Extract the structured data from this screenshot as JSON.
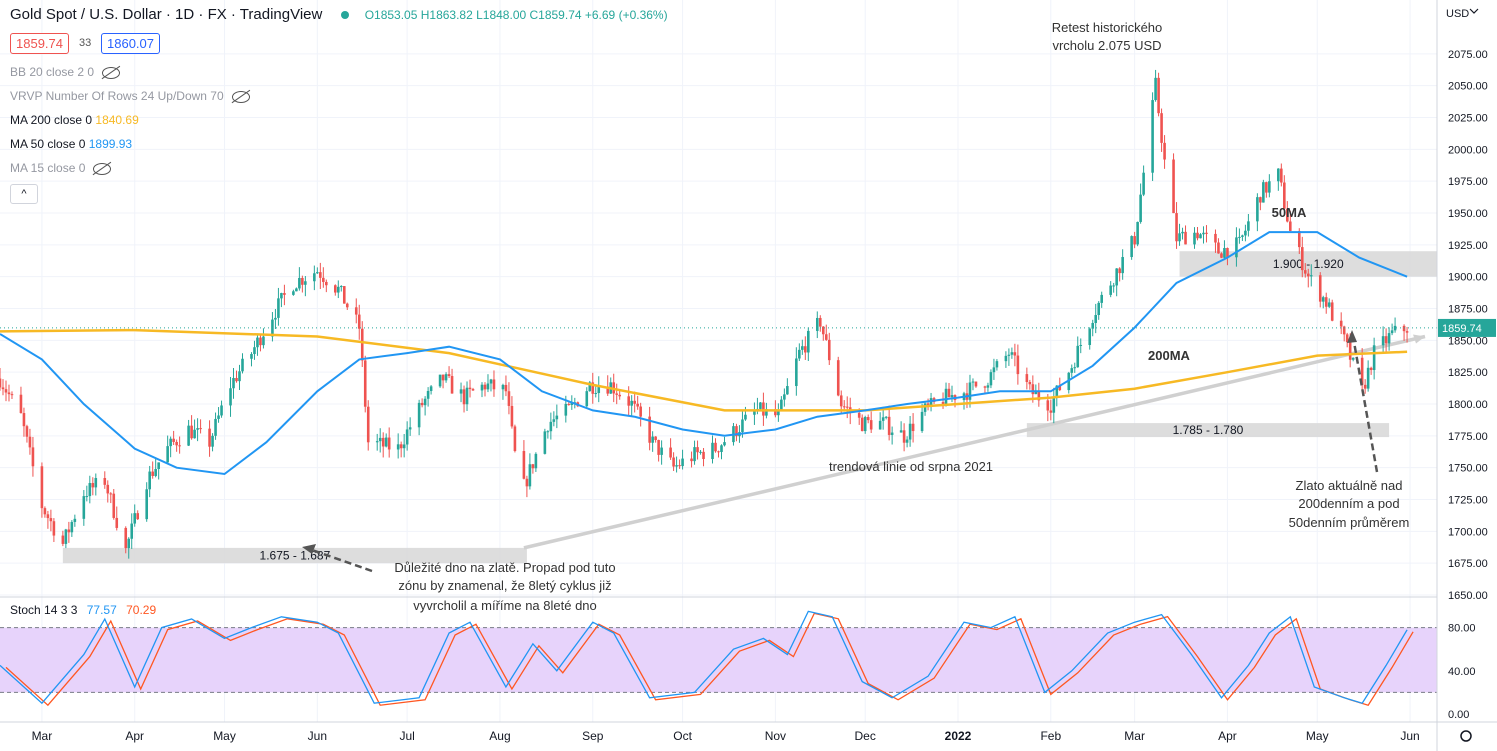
{
  "header": {
    "symbol": "Gold Spot / U.S. Dollar · 1D · FX · TradingView",
    "ohlc": "O1853.05  H1863.82  L1848.00  C1859.74  +6.69 (+0.36%)",
    "bid": "1859.74",
    "spread": "33",
    "ask": "1860.07"
  },
  "indicators": {
    "bb": "BB 20 close 2 0",
    "vrvp": "VRVP Number Of Rows 24 Up/Down 70",
    "ma200_label": "MA 200 close 0",
    "ma200_value": "1840.69",
    "ma50_label": "MA 50 close 0",
    "ma50_value": "1899.93",
    "ma15": "MA 15 close 0",
    "collapse": "^"
  },
  "stoch": {
    "label": "Stoch 14 3 3",
    "k": "77.57",
    "d": "70.29"
  },
  "colors": {
    "up": "#26a69a",
    "down": "#ef5350",
    "ma50": "#2196f3",
    "ma200": "#f7b924",
    "stoch_k": "#2196f3",
    "stoch_d": "#ff5722",
    "stoch_band": "#e7d3fb",
    "zone": "#d9d9d9",
    "trend": "#d0d0d0"
  },
  "chart_data": {
    "type": "candlestick",
    "currency": "USD",
    "ylim": [
      1650,
      2100
    ],
    "y_ticks": [
      1650,
      1675,
      1700,
      1725,
      1750,
      1775,
      1800,
      1825,
      1850,
      1875,
      1900,
      1925,
      1950,
      1975,
      2000,
      2025,
      2050,
      2075
    ],
    "y_tick_labels": [
      "1650.00",
      "1675.00",
      "1700.00",
      "1725.00",
      "1750.00",
      "1775.00",
      "1800.00",
      "1825.00",
      "1850.00",
      "1875.00",
      "1900.00",
      "1925.00",
      "1950.00",
      "1975.00",
      "2000.00",
      "2025.00",
      "2050.00",
      "2075.00"
    ],
    "x_range": [
      "2021-02-15",
      "2022-06-10"
    ],
    "x_labels": [
      {
        "date": "2021-03-01",
        "label": "Mar",
        "bold": false
      },
      {
        "date": "2021-04-01",
        "label": "Apr",
        "bold": false
      },
      {
        "date": "2021-05-01",
        "label": "May",
        "bold": false
      },
      {
        "date": "2021-06-01",
        "label": "Jun",
        "bold": false
      },
      {
        "date": "2021-07-01",
        "label": "Jul",
        "bold": false
      },
      {
        "date": "2021-08-01",
        "label": "Aug",
        "bold": false
      },
      {
        "date": "2021-09-01",
        "label": "Sep",
        "bold": false
      },
      {
        "date": "2021-10-01",
        "label": "Oct",
        "bold": false
      },
      {
        "date": "2021-11-01",
        "label": "Nov",
        "bold": false
      },
      {
        "date": "2021-12-01",
        "label": "Dec",
        "bold": false
      },
      {
        "date": "2022-01-01",
        "label": "2022",
        "bold": true
      },
      {
        "date": "2022-02-01",
        "label": "Feb",
        "bold": false
      },
      {
        "date": "2022-03-01",
        "label": "Mar",
        "bold": false
      },
      {
        "date": "2022-04-01",
        "label": "Apr",
        "bold": false
      },
      {
        "date": "2022-05-01",
        "label": "May",
        "bold": false
      },
      {
        "date": "2022-06-01",
        "label": "Jun",
        "bold": false
      }
    ],
    "last_price": 1859.74,
    "last_price_label": "1859.74",
    "close_path": [
      {
        "d": "2021-02-15",
        "v": 1820
      },
      {
        "d": "2021-02-22",
        "v": 1790
      },
      {
        "d": "2021-03-01",
        "v": 1720
      },
      {
        "d": "2021-03-08",
        "v": 1690
      },
      {
        "d": "2021-03-15",
        "v": 1730
      },
      {
        "d": "2021-03-22",
        "v": 1740
      },
      {
        "d": "2021-03-29",
        "v": 1685
      },
      {
        "d": "2021-04-05",
        "v": 1740
      },
      {
        "d": "2021-04-12",
        "v": 1765
      },
      {
        "d": "2021-04-19",
        "v": 1780
      },
      {
        "d": "2021-04-26",
        "v": 1770
      },
      {
        "d": "2021-05-03",
        "v": 1815
      },
      {
        "d": "2021-05-10",
        "v": 1840
      },
      {
        "d": "2021-05-17",
        "v": 1870
      },
      {
        "d": "2021-05-24",
        "v": 1895
      },
      {
        "d": "2021-06-01",
        "v": 1905
      },
      {
        "d": "2021-06-08",
        "v": 1890
      },
      {
        "d": "2021-06-15",
        "v": 1860
      },
      {
        "d": "2021-06-18",
        "v": 1770
      },
      {
        "d": "2021-06-28",
        "v": 1765
      },
      {
        "d": "2021-07-06",
        "v": 1800
      },
      {
        "d": "2021-07-13",
        "v": 1820
      },
      {
        "d": "2021-07-20",
        "v": 1805
      },
      {
        "d": "2021-07-27",
        "v": 1815
      },
      {
        "d": "2021-08-03",
        "v": 1810
      },
      {
        "d": "2021-08-06",
        "v": 1760
      },
      {
        "d": "2021-08-09",
        "v": 1735
      },
      {
        "d": "2021-08-17",
        "v": 1785
      },
      {
        "d": "2021-08-24",
        "v": 1795
      },
      {
        "d": "2021-08-31",
        "v": 1815
      },
      {
        "d": "2021-09-07",
        "v": 1815
      },
      {
        "d": "2021-09-14",
        "v": 1800
      },
      {
        "d": "2021-09-21",
        "v": 1770
      },
      {
        "d": "2021-09-28",
        "v": 1750
      },
      {
        "d": "2021-10-05",
        "v": 1760
      },
      {
        "d": "2021-10-12",
        "v": 1765
      },
      {
        "d": "2021-10-19",
        "v": 1780
      },
      {
        "d": "2021-10-26",
        "v": 1795
      },
      {
        "d": "2021-11-02",
        "v": 1790
      },
      {
        "d": "2021-11-09",
        "v": 1840
      },
      {
        "d": "2021-11-16",
        "v": 1865
      },
      {
        "d": "2021-11-23",
        "v": 1800
      },
      {
        "d": "2021-11-30",
        "v": 1785
      },
      {
        "d": "2021-12-07",
        "v": 1785
      },
      {
        "d": "2021-12-14",
        "v": 1775
      },
      {
        "d": "2021-12-21",
        "v": 1795
      },
      {
        "d": "2021-12-28",
        "v": 1805
      },
      {
        "d": "2022-01-04",
        "v": 1810
      },
      {
        "d": "2022-01-11",
        "v": 1820
      },
      {
        "d": "2022-01-18",
        "v": 1840
      },
      {
        "d": "2022-01-25",
        "v": 1810
      },
      {
        "d": "2022-02-01",
        "v": 1800
      },
      {
        "d": "2022-02-08",
        "v": 1830
      },
      {
        "d": "2022-02-15",
        "v": 1870
      },
      {
        "d": "2022-02-22",
        "v": 1900
      },
      {
        "d": "2022-03-01",
        "v": 1930
      },
      {
        "d": "2022-03-08",
        "v": 2050
      },
      {
        "d": "2022-03-11",
        "v": 1990
      },
      {
        "d": "2022-03-15",
        "v": 1930
      },
      {
        "d": "2022-03-22",
        "v": 1935
      },
      {
        "d": "2022-03-29",
        "v": 1920
      },
      {
        "d": "2022-04-05",
        "v": 1925
      },
      {
        "d": "2022-04-12",
        "v": 1965
      },
      {
        "d": "2022-04-18",
        "v": 1980
      },
      {
        "d": "2022-04-22",
        "v": 1935
      },
      {
        "d": "2022-04-28",
        "v": 1900
      },
      {
        "d": "2022-05-04",
        "v": 1880
      },
      {
        "d": "2022-05-10",
        "v": 1850
      },
      {
        "d": "2022-05-16",
        "v": 1810
      },
      {
        "d": "2022-05-20",
        "v": 1840
      },
      {
        "d": "2022-05-26",
        "v": 1855
      },
      {
        "d": "2022-05-31",
        "v": 1860
      }
    ],
    "ma50": [
      {
        "d": "2021-02-15",
        "v": 1855
      },
      {
        "d": "2021-03-01",
        "v": 1835
      },
      {
        "d": "2021-03-15",
        "v": 1800
      },
      {
        "d": "2021-04-01",
        "v": 1765
      },
      {
        "d": "2021-04-15",
        "v": 1750
      },
      {
        "d": "2021-05-01",
        "v": 1745
      },
      {
        "d": "2021-05-15",
        "v": 1770
      },
      {
        "d": "2021-06-01",
        "v": 1810
      },
      {
        "d": "2021-06-15",
        "v": 1835
      },
      {
        "d": "2021-07-01",
        "v": 1840
      },
      {
        "d": "2021-07-15",
        "v": 1845
      },
      {
        "d": "2021-08-01",
        "v": 1835
      },
      {
        "d": "2021-08-15",
        "v": 1810
      },
      {
        "d": "2021-09-01",
        "v": 1795
      },
      {
        "d": "2021-09-15",
        "v": 1790
      },
      {
        "d": "2021-10-01",
        "v": 1780
      },
      {
        "d": "2021-10-15",
        "v": 1775
      },
      {
        "d": "2021-11-01",
        "v": 1780
      },
      {
        "d": "2021-11-15",
        "v": 1790
      },
      {
        "d": "2021-12-01",
        "v": 1795
      },
      {
        "d": "2021-12-15",
        "v": 1800
      },
      {
        "d": "2022-01-01",
        "v": 1805
      },
      {
        "d": "2022-01-15",
        "v": 1810
      },
      {
        "d": "2022-02-01",
        "v": 1810
      },
      {
        "d": "2022-02-15",
        "v": 1830
      },
      {
        "d": "2022-03-01",
        "v": 1860
      },
      {
        "d": "2022-03-15",
        "v": 1895
      },
      {
        "d": "2022-04-01",
        "v": 1915
      },
      {
        "d": "2022-04-15",
        "v": 1935
      },
      {
        "d": "2022-05-01",
        "v": 1935
      },
      {
        "d": "2022-05-15",
        "v": 1915
      },
      {
        "d": "2022-05-31",
        "v": 1900
      }
    ],
    "ma200": [
      {
        "d": "2021-02-15",
        "v": 1857
      },
      {
        "d": "2021-04-01",
        "v": 1858
      },
      {
        "d": "2021-06-01",
        "v": 1853
      },
      {
        "d": "2021-07-15",
        "v": 1840
      },
      {
        "d": "2021-09-01",
        "v": 1815
      },
      {
        "d": "2021-10-15",
        "v": 1795
      },
      {
        "d": "2021-12-01",
        "v": 1795
      },
      {
        "d": "2022-01-01",
        "v": 1800
      },
      {
        "d": "2022-02-01",
        "v": 1805
      },
      {
        "d": "2022-03-01",
        "v": 1812
      },
      {
        "d": "2022-04-01",
        "v": 1825
      },
      {
        "d": "2022-05-01",
        "v": 1838
      },
      {
        "d": "2022-05-31",
        "v": 1841
      }
    ],
    "stoch_k": [
      {
        "d": "2021-02-15",
        "v": 45
      },
      {
        "d": "2021-03-01",
        "v": 10
      },
      {
        "d": "2021-03-15",
        "v": 55
      },
      {
        "d": "2021-03-22",
        "v": 88
      },
      {
        "d": "2021-04-01",
        "v": 25
      },
      {
        "d": "2021-04-10",
        "v": 80
      },
      {
        "d": "2021-04-20",
        "v": 88
      },
      {
        "d": "2021-05-01",
        "v": 70
      },
      {
        "d": "2021-05-10",
        "v": 80
      },
      {
        "d": "2021-05-20",
        "v": 90
      },
      {
        "d": "2021-06-01",
        "v": 85
      },
      {
        "d": "2021-06-08",
        "v": 75
      },
      {
        "d": "2021-06-20",
        "v": 10
      },
      {
        "d": "2021-07-05",
        "v": 15
      },
      {
        "d": "2021-07-15",
        "v": 75
      },
      {
        "d": "2021-07-22",
        "v": 85
      },
      {
        "d": "2021-08-03",
        "v": 25
      },
      {
        "d": "2021-08-12",
        "v": 65
      },
      {
        "d": "2021-08-20",
        "v": 40
      },
      {
        "d": "2021-09-01",
        "v": 85
      },
      {
        "d": "2021-09-08",
        "v": 75
      },
      {
        "d": "2021-09-20",
        "v": 15
      },
      {
        "d": "2021-10-05",
        "v": 20
      },
      {
        "d": "2021-10-18",
        "v": 60
      },
      {
        "d": "2021-10-28",
        "v": 70
      },
      {
        "d": "2021-11-05",
        "v": 55
      },
      {
        "d": "2021-11-12",
        "v": 95
      },
      {
        "d": "2021-11-20",
        "v": 90
      },
      {
        "d": "2021-11-30",
        "v": 30
      },
      {
        "d": "2021-12-10",
        "v": 15
      },
      {
        "d": "2021-12-22",
        "v": 35
      },
      {
        "d": "2022-01-03",
        "v": 85
      },
      {
        "d": "2022-01-12",
        "v": 80
      },
      {
        "d": "2022-01-20",
        "v": 90
      },
      {
        "d": "2022-01-30",
        "v": 20
      },
      {
        "d": "2022-02-08",
        "v": 40
      },
      {
        "d": "2022-02-20",
        "v": 75
      },
      {
        "d": "2022-03-01",
        "v": 85
      },
      {
        "d": "2022-03-10",
        "v": 92
      },
      {
        "d": "2022-03-20",
        "v": 55
      },
      {
        "d": "2022-03-30",
        "v": 15
      },
      {
        "d": "2022-04-08",
        "v": 45
      },
      {
        "d": "2022-04-15",
        "v": 75
      },
      {
        "d": "2022-04-22",
        "v": 90
      },
      {
        "d": "2022-04-30",
        "v": 25
      },
      {
        "d": "2022-05-10",
        "v": 15
      },
      {
        "d": "2022-05-16",
        "v": 10
      },
      {
        "d": "2022-05-24",
        "v": 45
      },
      {
        "d": "2022-05-31",
        "v": 78
      }
    ],
    "stoch_ylim": [
      0,
      100
    ],
    "stoch_ticks": [
      0,
      40,
      80
    ],
    "stoch_tick_labels": [
      "0.00",
      "40.00",
      "80.00"
    ],
    "stoch_band": [
      20,
      80
    ],
    "zones": [
      {
        "x1": "2021-03-08",
        "x2": "2021-08-10",
        "y1": 1675,
        "y2": 1687,
        "label": "1.675 - 1.687"
      },
      {
        "x1": "2022-01-24",
        "x2": "2022-05-25",
        "y1": 1780,
        "y2": 1785,
        "label": "1.785 - 1.780"
      },
      {
        "x1": "2022-03-16",
        "x2": "2022-06-10",
        "y1": 1900,
        "y2": 1920,
        "label": "1.900 - 1.920"
      }
    ],
    "trendline": {
      "x1": "2021-08-09",
      "y1": 1687,
      "x2": "2022-06-06",
      "y2": 1853
    },
    "annotations": {
      "ma50": "50MA",
      "ma200": "200MA",
      "top_1": "Retest historického",
      "top_2": "vrcholu 2.075 USD",
      "trend": "trendová linie od srpna 2021",
      "bottom_1": "Důležité dno na zlatě. Propad pod tuto",
      "bottom_2": "zónu by znamenal, že 8letý cyklus již",
      "bottom_3": "vyvrcholil a míříme na 8leté dno",
      "right_1": "Zlato aktuálně nad",
      "right_2": "200denním a pod",
      "right_3": "50denním průměrem"
    }
  }
}
